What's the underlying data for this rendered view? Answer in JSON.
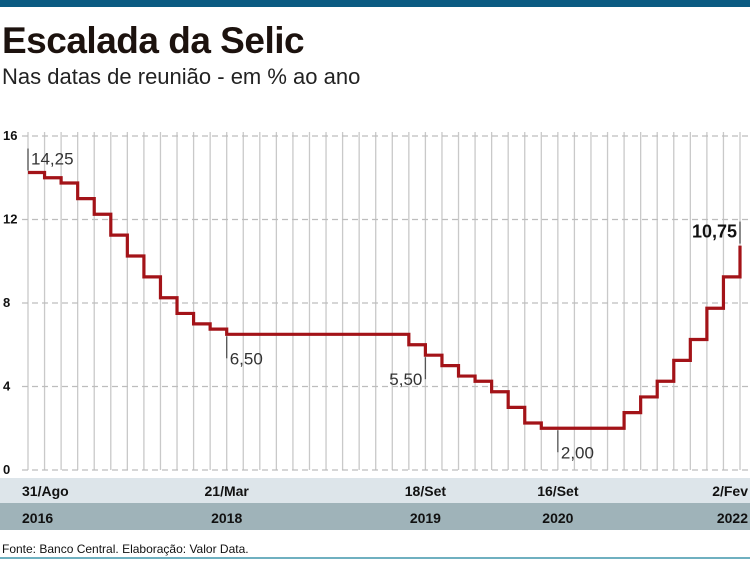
{
  "title": "Escalada da Selic",
  "subtitle": "Nas datas de reunião - em % ao ano",
  "source": "Fonte: Banco Central. Elaboração: Valor Data.",
  "colors": {
    "line": "#a31318",
    "date_band": "#dde5ea",
    "year_band": "#9fb3b9",
    "top_bar": "#0b5b82"
  },
  "chart_data": {
    "type": "line",
    "step": true,
    "title": "Escalada da Selic",
    "ylabel": "% ao ano",
    "ylim": [
      0,
      16
    ],
    "yticks": [
      "0",
      "4",
      "8",
      "12",
      "16"
    ],
    "grid": true,
    "values": [
      14.25,
      14.0,
      13.75,
      13.0,
      12.25,
      11.25,
      10.25,
      9.25,
      8.25,
      7.5,
      7.0,
      6.75,
      6.5,
      6.5,
      6.5,
      6.5,
      6.5,
      6.5,
      6.5,
      6.5,
      6.5,
      6.5,
      6.5,
      6.0,
      5.5,
      5.0,
      4.5,
      4.25,
      3.75,
      3.0,
      2.25,
      2.0,
      2.0,
      2.0,
      2.0,
      2.0,
      2.75,
      3.5,
      4.25,
      5.25,
      6.25,
      7.75,
      9.25,
      10.75
    ],
    "annotations": [
      {
        "index": 0,
        "text": "14,25",
        "pos": "above-right"
      },
      {
        "index": 12,
        "text": "6,50",
        "pos": "below-right"
      },
      {
        "index": 24,
        "text": "5,50",
        "pos": "below-left"
      },
      {
        "index": 32,
        "text": "2,00",
        "pos": "below-right"
      },
      {
        "index": 43,
        "text": "10,75",
        "pos": "above-left"
      }
    ],
    "x_labels": [
      {
        "index": 0,
        "date": "31/Ago",
        "year": "2016"
      },
      {
        "index": 12,
        "date": "21/Mar",
        "year": "2018"
      },
      {
        "index": 24,
        "date": "18/Set",
        "year": "2019"
      },
      {
        "index": 32,
        "date": "16/Set",
        "year": "2020"
      },
      {
        "index": 43,
        "date": "2/Fev",
        "year": "2022"
      }
    ]
  }
}
